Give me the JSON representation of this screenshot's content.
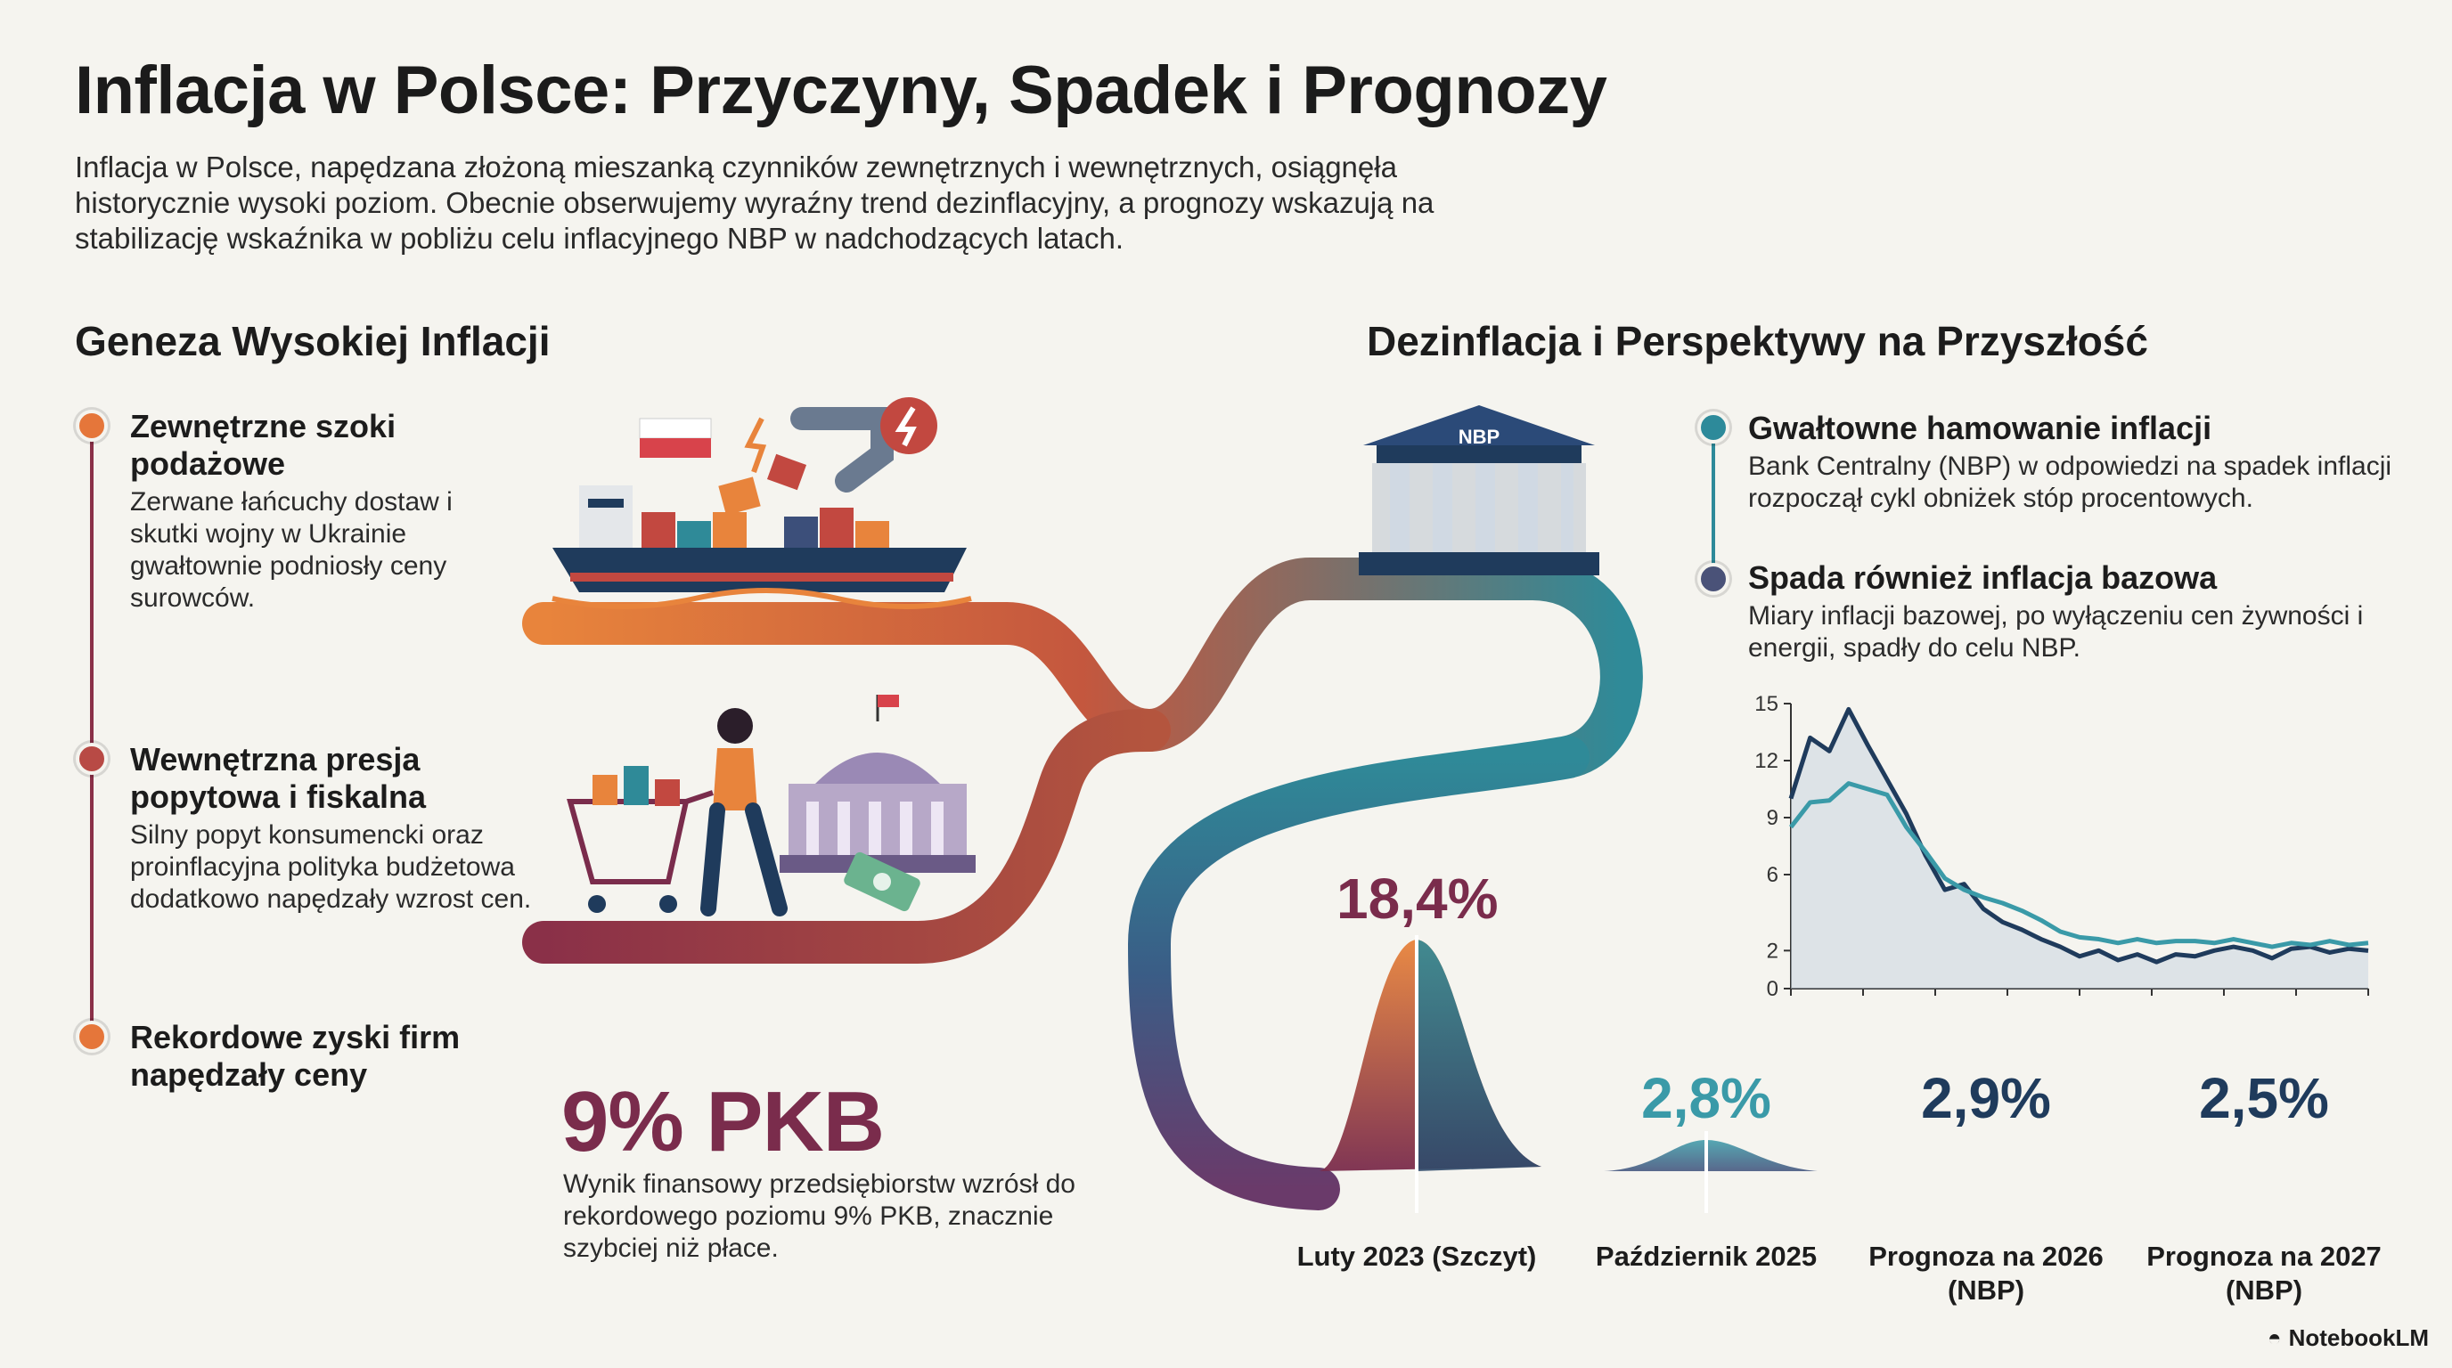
{
  "title": "Inflacja w Polsce: Przyczyny, Spadek i Prognozy",
  "intro": "Inflacja w Polsce, napędzana złożoną mieszanką czynników zewnętrznych i wewnętrznych, osiągnęła historycznie wysoki poziom. Obecnie obserwujemy wyraźny trend dezinflacyjny, a prognozy wskazują na stabilizację wskaźnika w pobliżu celu inflacyjnego NBP w nadchodzących latach.",
  "left_section": {
    "heading": "Geneza Wysokiej Inflacji",
    "items": [
      {
        "title": "Zewnętrzne szoki podażowe",
        "desc": "Zerwane łańcuchy dostaw i skutki wojny w Ukrainie gwałtownie podniosły ceny surowców.",
        "color": "#e5763a"
      },
      {
        "title": "Wewnętrzna presja popytowa i fiskalna",
        "desc": "Silny popyt konsumencki oraz proinflacyjna polityka budżetowa dodatkowo napędzały wzrost cen.",
        "color": "#b84a45"
      },
      {
        "title": "Rekordowe zyski firm napędzały ceny",
        "desc": "",
        "color": "#e5763a"
      }
    ],
    "pkb": {
      "value": "9% PKB",
      "desc": "Wynik finansowy przedsiębiorstw wzrósł do rekordowego poziomu 9% PKB, znacznie szybciej niż płace."
    }
  },
  "right_section": {
    "heading": "Dezinflacja i Perspektywy na Przyszłość",
    "bank_label": "NBP",
    "items": [
      {
        "title": "Gwałtowne hamowanie inflacji",
        "desc": "Bank Centralny (NBP) w odpowiedzi na spadek inflacji rozpoczął cykl obniżek stóp procentowych.",
        "color": "#2d8a9a"
      },
      {
        "title": "Spada również inflacja bazowa",
        "desc": "Miary inflacji bazowej, po wyłączeniu cen żywności i energii, spadły do celu NBP.",
        "color": "#4a5278"
      }
    ]
  },
  "timeline": [
    {
      "value": "18,4%",
      "label": "Luty 2023 (Szczyt)",
      "color": "#7a2c4c"
    },
    {
      "value": "2,8%",
      "label": "Październik 2025",
      "color": "#3a9aa8"
    },
    {
      "value": "2,9%",
      "label": "Prognoza na 2026 (NBP)",
      "color": "#1f3b5c"
    },
    {
      "value": "2,5%",
      "label": "Prognoza na 2027 (NBP)",
      "color": "#1f3b5c"
    }
  ],
  "chart_data": {
    "type": "line",
    "ylim": [
      0,
      15
    ],
    "yticks": [
      "0",
      "2",
      "6",
      "9",
      "12",
      "15"
    ],
    "series": [
      {
        "values": [
          10,
          13.2,
          12.5,
          14.7,
          12.8,
          11,
          9.2,
          7,
          5.2,
          5.5,
          4.2,
          3.5,
          3.1,
          2.6,
          2.2,
          1.7,
          2.0,
          1.5,
          1.8,
          1.4,
          1.8,
          1.7,
          2.0,
          2.2,
          2.0,
          1.6,
          2.1,
          2.2,
          1.9,
          2.1,
          2.0
        ],
        "color": "#1f3b5c"
      },
      {
        "values": [
          8.5,
          9.8,
          9.9,
          10.8,
          10.5,
          10.2,
          8.5,
          7.2,
          5.8,
          5.2,
          4.8,
          4.5,
          4.1,
          3.6,
          3.0,
          2.7,
          2.6,
          2.4,
          2.6,
          2.4,
          2.5,
          2.5,
          2.4,
          2.6,
          2.4,
          2.2,
          2.4,
          2.3,
          2.5,
          2.3,
          2.4
        ],
        "color": "#3a9aa8"
      }
    ]
  },
  "brand": "NotebookLM"
}
